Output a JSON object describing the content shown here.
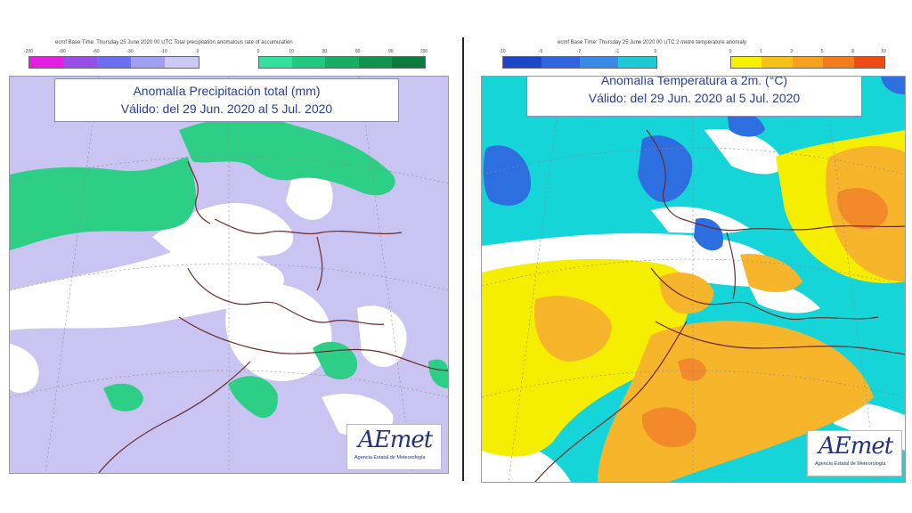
{
  "precipitation_panel": {
    "header": "ecmf  Base Time: Thursday 25 June 2020 00 UTC Total precipitation anomalous rate of accumulation",
    "title_line1": "Anomalía Precipitación total (mm)",
    "title_line2": "Válido: del 29 Jun. 2020 al 5 Jul. 2020",
    "legend_negative_ticks": [
      "-200",
      "-90",
      "-60",
      "-30",
      "-10",
      "0"
    ],
    "legend_positive_ticks": [
      "0",
      "10",
      "30",
      "60",
      "90",
      "200"
    ],
    "legend_negative_colors": [
      "#e31fe0",
      "#9a4ee8",
      "#6c6ff0",
      "#9fa0f2",
      "#cdc9f6"
    ],
    "legend_positive_colors": [
      "#32e0a0",
      "#20c880",
      "#17ad64",
      "#0f934f",
      "#0b7a3e"
    ],
    "map_colors": {
      "below": "#c9c4f2",
      "neutral": "#ffffff",
      "above": "#2dcf86",
      "coast": "#6b2a2a"
    }
  },
  "temperature_panel": {
    "header": "ecmf  Base Time: Thursday 25 June 2020 00 UTC 2 metre temperature anomaly",
    "title_line1": "Anomalía Temperatura a 2m. (°C)",
    "title_line2": "Válido: del 29 Jun. 2020 al 5 Jul. 2020",
    "legend_negative_ticks": [
      "-10",
      "-5",
      "-2",
      "-1",
      "0"
    ],
    "legend_positive_ticks": [
      "0",
      "1",
      "2",
      "5",
      "8",
      "10"
    ],
    "legend_negative_colors": [
      "#1e44c8",
      "#2f63df",
      "#3b8ae6",
      "#1fc9d6"
    ],
    "legend_positive_colors": [
      "#f4f000",
      "#f6c21a",
      "#f6a21e",
      "#f37c1c",
      "#ee4b12"
    ],
    "map_colors": {
      "cold_mild": "#16d5d8",
      "cold_strong": "#2d6ee0",
      "warm_mild": "#f6ee00",
      "warm_mid": "#f6b52a",
      "warm_strong": "#f2892a",
      "neutral": "#ffffff"
    }
  },
  "logo": {
    "mark": "AEmet",
    "subtitle": "Agencia Estatal de Meteorología"
  }
}
